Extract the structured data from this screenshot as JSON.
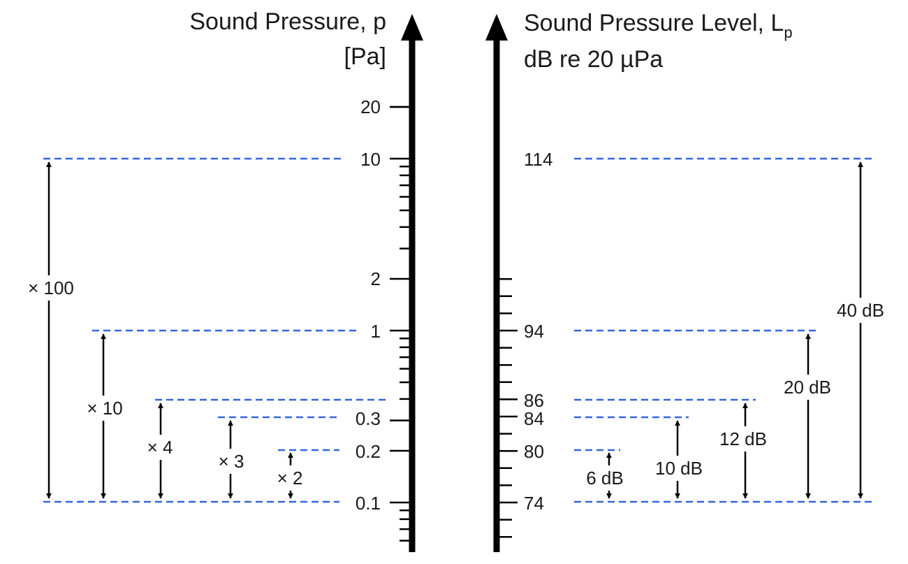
{
  "colors": {
    "dashed_line": "#3366dd",
    "ink": "#000000"
  },
  "left_axis": {
    "title_line1": "Sound Pressure, p",
    "title_line2": "[Pa]",
    "tick_labels": [
      "20",
      "10",
      "2",
      "1",
      "0.3",
      "0.2",
      "0.1"
    ]
  },
  "right_axis": {
    "title_prefix": "Sound Pressure Level, L",
    "title_subscript": "p",
    "title_line2": "dB re 20 µPa",
    "tick_labels": [
      "114",
      "94",
      "86",
      "84",
      "80",
      "74"
    ]
  },
  "left_ratios": [
    "× 100",
    "× 10",
    "× 4",
    "× 3",
    "× 2"
  ],
  "right_differences": [
    "40 dB",
    "20 dB",
    "12 dB",
    "10 dB",
    "6 dB"
  ]
}
